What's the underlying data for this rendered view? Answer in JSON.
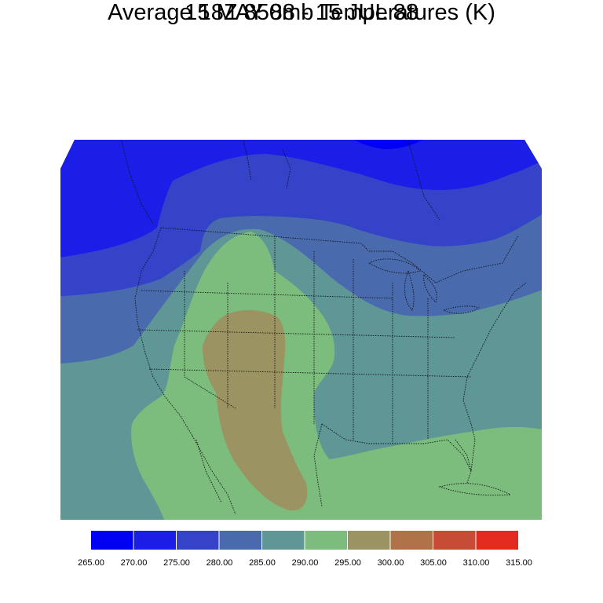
{
  "title": "Average 18Z 850mb Temperatures (K)",
  "subtitle": "15 MAY 88 - 15 JUL 88",
  "legend": {
    "colors": [
      "#0000f2",
      "#1a1ee6",
      "#3443c8",
      "#4a6aae",
      "#5f9696",
      "#7cbd7e",
      "#9b9462",
      "#b07248",
      "#c74c36",
      "#e32a1e"
    ],
    "labels": [
      "265.00",
      "270.00",
      "275.00",
      "280.00",
      "285.00",
      "290.00",
      "295.00",
      "300.00",
      "305.00",
      "310.00",
      "315.00"
    ]
  }
}
